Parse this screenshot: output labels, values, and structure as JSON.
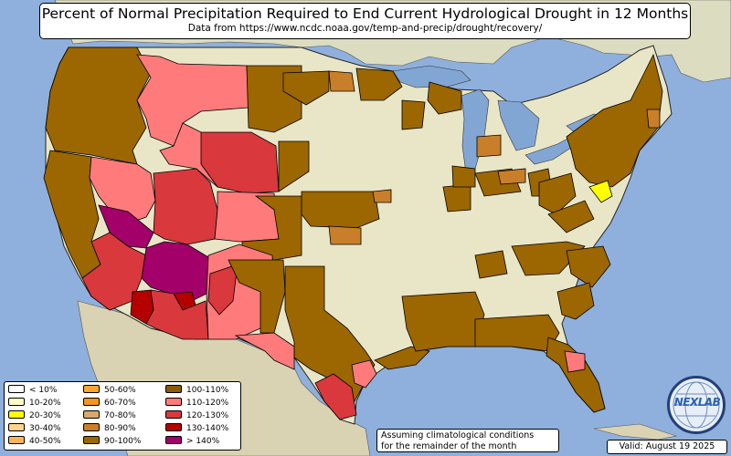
{
  "title": "Percent of Normal Precipitation Required to End Current Hydrological Drought in 12 Months",
  "subtitle": "Data from https://www.ncdc.noaa.gov/temp-and-precip/drought/recovery/",
  "legend": {
    "items": [
      {
        "label": "< 10%",
        "color": "#ffffff"
      },
      {
        "label": "10-20%",
        "color": "#ffffc8"
      },
      {
        "label": "20-30%",
        "color": "#ffff00"
      },
      {
        "label": "30-40%",
        "color": "#ffd38a"
      },
      {
        "label": "40-50%",
        "color": "#ffb554"
      },
      {
        "label": "50-60%",
        "color": "#ffa530"
      },
      {
        "label": "60-70%",
        "color": "#f5951e"
      },
      {
        "label": "70-80%",
        "color": "#d8a86c"
      },
      {
        "label": "80-90%",
        "color": "#c97f2a"
      },
      {
        "label": "90-100%",
        "color": "#9c6600"
      },
      {
        "label": "100-110%",
        "color": "#8c5a00"
      },
      {
        "label": "110-120%",
        "color": "#ff7b7b"
      },
      {
        "label": "120-130%",
        "color": "#d9383d"
      },
      {
        "label": "130-140%",
        "color": "#b40000"
      },
      {
        "label": "> 140%",
        "color": "#a3006a"
      }
    ]
  },
  "note": {
    "line1": "Assuming climatological conditions",
    "line2": "for the remainder of the month"
  },
  "valid": "Valid: August 19 2025",
  "logo_text": "NEXLAB",
  "colors": {
    "ocean": "#8fb0dc",
    "land": "#e9e6c7",
    "terrain": "#c7cfa0",
    "lakes": "#82a6d4",
    "mexico": "#d9d3b4",
    "canada": "#dcdcc0"
  }
}
